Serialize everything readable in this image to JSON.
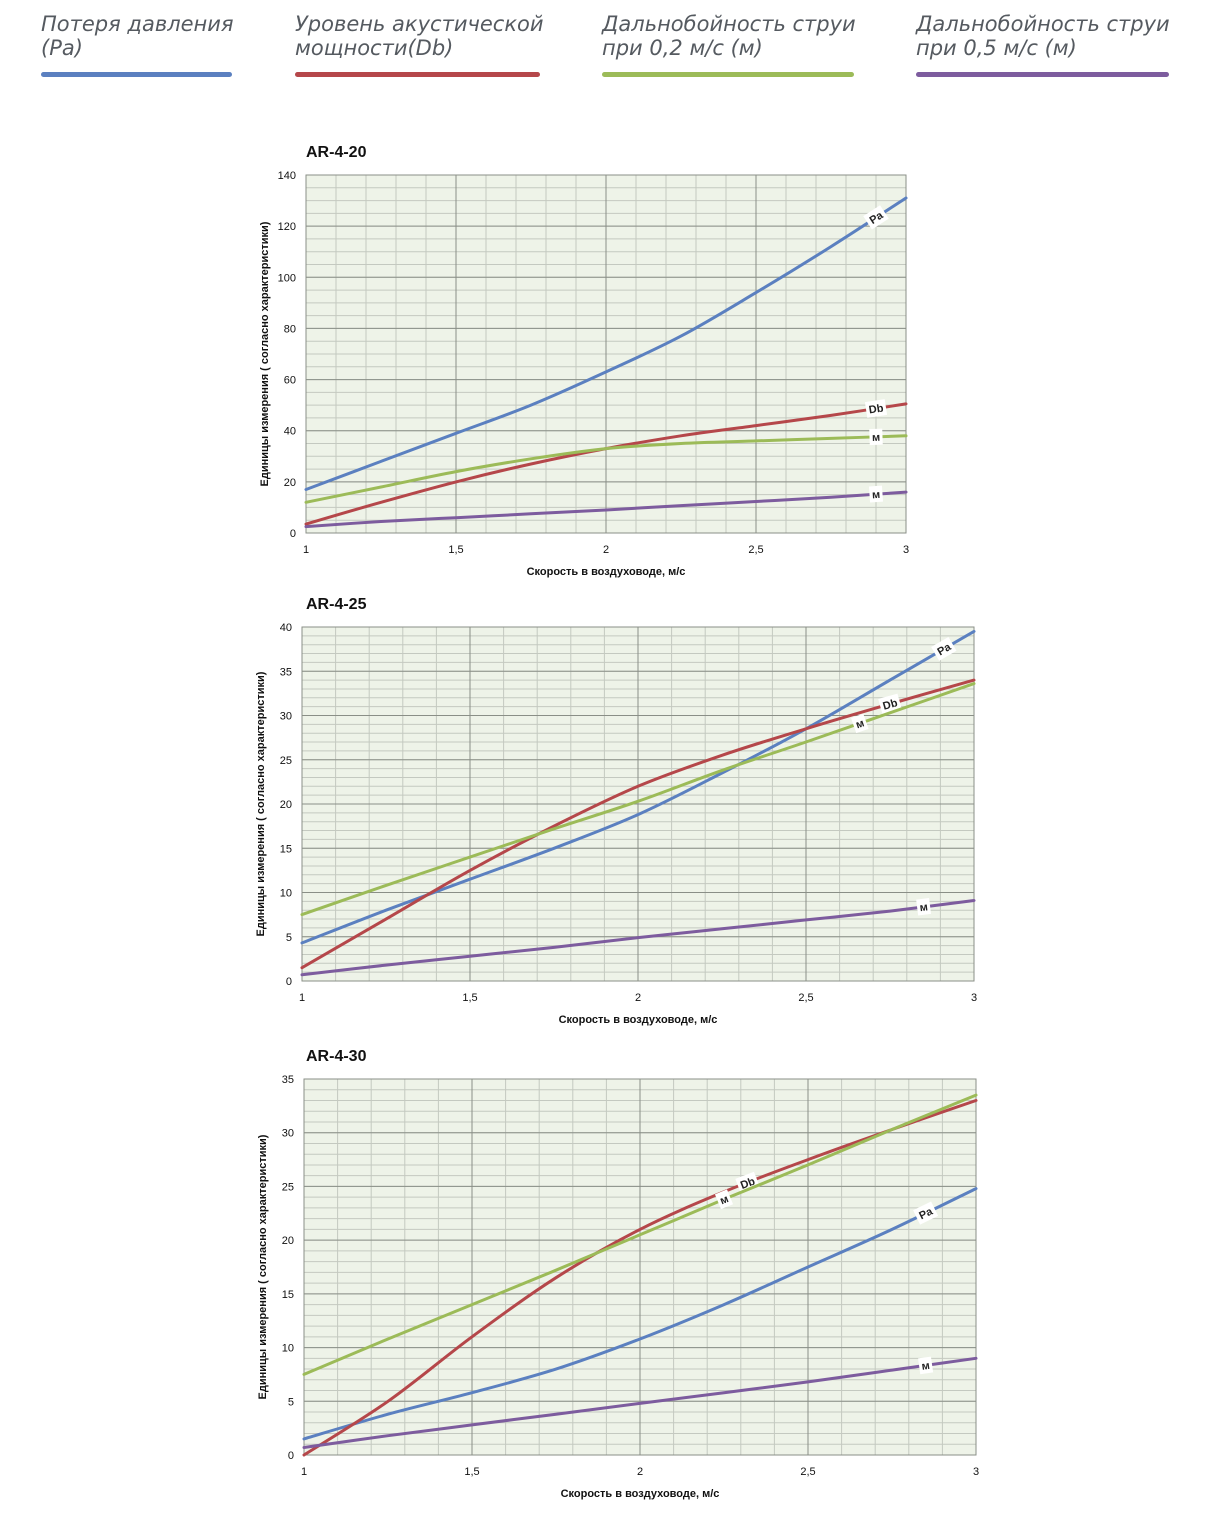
{
  "legend": [
    {
      "label": "Потеря давления\n(Pa)",
      "color": "#5b80c0"
    },
    {
      "label": "Уровень акустической\nмощности(Db)",
      "color": "#b5474a"
    },
    {
      "label": "Дальнобойность струи\nпри 0,2 м/с (м)",
      "color": "#9cbb58"
    },
    {
      "label": "Дальнобойность струи\nпри 0,5 м/с (м)",
      "color": "#7d5c9e"
    }
  ],
  "chart_data": [
    {
      "type": "line",
      "title": "AR-4-20",
      "xlabel": "Скорость в воздуховоде, м/с",
      "ylabel": "Единицы измерения ( согласно характеристики)",
      "xlim": [
        1,
        3
      ],
      "ylim": [
        0,
        140
      ],
      "x_ticks": [
        1,
        1.5,
        2,
        2.5,
        3
      ],
      "x_tick_labels": [
        "1",
        "1,5",
        "2",
        "2,5",
        "3"
      ],
      "y_ticks": [
        0,
        20,
        40,
        60,
        80,
        100,
        120,
        140
      ],
      "y_tick_labels": [
        "0",
        "20",
        "40",
        "60",
        "80",
        "100",
        "120",
        "140"
      ],
      "x": [
        1,
        1.25,
        1.5,
        1.75,
        2,
        2.25,
        2.5,
        2.75,
        3
      ],
      "series": [
        {
          "name": "Pa",
          "label": "Pa",
          "color": "#5b80c0",
          "values": [
            17,
            28,
            39,
            50,
            63,
            77,
            94,
            112,
            131
          ],
          "label_x": 2.9
        },
        {
          "name": "Db",
          "label": "Db",
          "color": "#b5474a",
          "values": [
            3.5,
            12,
            20,
            27,
            33,
            38,
            42,
            46,
            50.5
          ],
          "label_x": 2.9
        },
        {
          "name": "м (0,2 м/с)",
          "label": "м",
          "color": "#9cbb58",
          "values": [
            12,
            18,
            24,
            29,
            33,
            35,
            36,
            37,
            38
          ],
          "label_x": 2.9
        },
        {
          "name": "м (0,5 м/с)",
          "label": "м",
          "color": "#7d5c9e",
          "values": [
            2.5,
            4.5,
            6,
            7.5,
            9,
            10.7,
            12.3,
            14,
            16
          ],
          "label_x": 2.9
        }
      ]
    },
    {
      "type": "line",
      "title": "AR-4-25",
      "xlabel": "Скорость в воздуховоде, м/с",
      "ylabel": "Единицы измерения ( согласно характеристики)",
      "xlim": [
        1,
        3
      ],
      "ylim": [
        0,
        40
      ],
      "x_ticks": [
        1,
        1.5,
        2,
        2.5,
        3
      ],
      "x_tick_labels": [
        "1",
        "1,5",
        "2",
        "2,5",
        "3"
      ],
      "y_ticks": [
        0,
        5,
        10,
        15,
        20,
        25,
        30,
        35,
        40
      ],
      "y_tick_labels": [
        "0",
        "5",
        "10",
        "15",
        "20",
        "25",
        "30",
        "35",
        "40"
      ],
      "x": [
        1,
        1.25,
        1.5,
        1.75,
        2,
        2.25,
        2.5,
        2.75,
        3
      ],
      "series": [
        {
          "name": "Pa",
          "label": "Pa",
          "color": "#5b80c0",
          "values": [
            4.3,
            8,
            11.5,
            15,
            18.8,
            23.5,
            28.5,
            34,
            39.5
          ],
          "label_x": 2.91
        },
        {
          "name": "Db",
          "label": "Db",
          "color": "#b5474a",
          "values": [
            1.5,
            7,
            12.5,
            17.5,
            22,
            25.5,
            28.5,
            31.3,
            34
          ],
          "label_x": 2.75
        },
        {
          "name": "м (0,2 м/с)",
          "label": "м",
          "color": "#9cbb58",
          "values": [
            7.5,
            10.8,
            14,
            17.2,
            20.3,
            23.8,
            27,
            30.3,
            33.6
          ],
          "label_x": 2.66
        },
        {
          "name": "м (0,5 м/с)",
          "label": "м",
          "color": "#7d5c9e",
          "values": [
            0.7,
            1.8,
            2.8,
            3.8,
            4.9,
            5.9,
            6.9,
            7.9,
            9.1
          ],
          "label_x": 2.85
        }
      ]
    },
    {
      "type": "line",
      "title": "AR-4-30",
      "xlabel": "Скорость в воздуховоде, м/с",
      "ylabel": "Единицы измерения ( согласно характеристики)",
      "xlim": [
        1,
        3
      ],
      "ylim": [
        0,
        35
      ],
      "x_ticks": [
        1,
        1.5,
        2,
        2.5,
        3
      ],
      "x_tick_labels": [
        "1",
        "1,5",
        "2",
        "2,5",
        "3"
      ],
      "y_ticks": [
        0,
        5,
        10,
        15,
        20,
        25,
        30,
        35
      ],
      "y_tick_labels": [
        "0",
        "5",
        "10",
        "15",
        "20",
        "25",
        "30",
        "35"
      ],
      "x": [
        1,
        1.25,
        1.5,
        1.75,
        2,
        2.25,
        2.5,
        2.75,
        3
      ],
      "series": [
        {
          "name": "Pa",
          "label": "Pa",
          "color": "#5b80c0",
          "values": [
            1.5,
            3.8,
            5.8,
            8,
            10.8,
            14,
            17.5,
            21,
            24.8
          ],
          "label_x": 2.85
        },
        {
          "name": "Db",
          "label": "Db",
          "color": "#b5474a",
          "values": [
            0,
            5,
            11,
            16.5,
            21,
            24.5,
            27.5,
            30.3,
            33
          ],
          "label_x": 2.32
        },
        {
          "name": "м (0,2 м/с)",
          "label": "м",
          "color": "#9cbb58",
          "values": [
            7.5,
            10.8,
            14,
            17.2,
            20.5,
            23.8,
            27,
            30.3,
            33.5
          ],
          "label_x": 2.25
        },
        {
          "name": "м (0,5 м/с)",
          "label": "м",
          "color": "#7d5c9e",
          "values": [
            0.7,
            1.8,
            2.8,
            3.8,
            4.8,
            5.8,
            6.8,
            7.9,
            9
          ],
          "label_x": 2.85
        }
      ]
    }
  ]
}
